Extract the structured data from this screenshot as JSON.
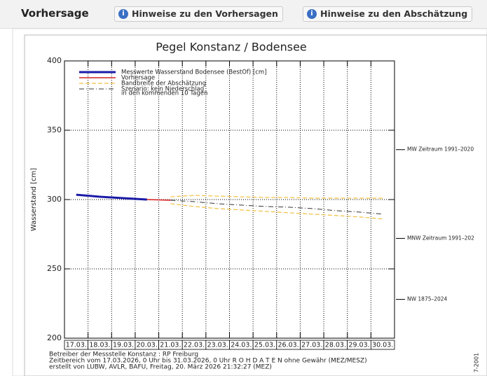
{
  "header": {
    "title": "Vorhersage",
    "buttons": [
      "Hinweise zu den Vorhersagen",
      "Hinweise zu den Abschätzung"
    ]
  },
  "chart_data": {
    "type": "line",
    "title": "Pegel Konstanz / Bodensee",
    "y_label": "Wasserstand [cm]",
    "categories": [
      "17.03.",
      "18.03.",
      "19.03.",
      "20.03.",
      "21.03.",
      "22.03.",
      "23.03.",
      "24.03.",
      "25.03.",
      "26.03.",
      "27.03.",
      "28.03.",
      "29.03.",
      "30.03."
    ],
    "series": [
      {
        "name": "Messwerte Wasserstand Bodensee  (BestOf)  [cm]",
        "color": "#1a1aa8",
        "style": "solid",
        "width": 3,
        "values": [
          303.5,
          302,
          301,
          300,
          null,
          null,
          null,
          null,
          null,
          null,
          null,
          null,
          null,
          null
        ]
      },
      {
        "name": "Vorhersage",
        "color": "#d42020",
        "style": "solid",
        "width": 1.5,
        "values": [
          null,
          null,
          null,
          300,
          299.5,
          null,
          null,
          null,
          null,
          null,
          null,
          null,
          null,
          null
        ]
      },
      {
        "name": "Szenario: kein Niederschlag",
        "color": "#333333",
        "style": "dashdot",
        "width": 1,
        "values": [
          null,
          null,
          null,
          null,
          299.5,
          298.5,
          297,
          296,
          295,
          294.5,
          293.5,
          292,
          291,
          289.5
        ]
      }
    ],
    "legend_note": "in den kommenden 10 Tagen",
    "band": {
      "name": "Bandbreite der Abschätzung",
      "color": "#f0c040",
      "upper": [
        null,
        null,
        null,
        null,
        302,
        303,
        302.5,
        302,
        301.5,
        301.5,
        301,
        301,
        301,
        301
      ],
      "lower": [
        null,
        null,
        null,
        null,
        297,
        295,
        293.5,
        292.5,
        291.5,
        290.5,
        289.5,
        288.5,
        287.5,
        286
      ]
    },
    "ylim": [
      200,
      400
    ],
    "yticks": [
      200,
      250,
      300,
      350,
      400
    ],
    "grid": true,
    "annotations": [
      {
        "value": 336,
        "label": "MW Zeitraum 1991–2020"
      },
      {
        "value": 272,
        "label": "MNW Zeitraum 1991–202"
      },
      {
        "value": 228,
        "label": "NW 1875–2024"
      }
    ],
    "footer": [
      "Betreiber der Messstelle Konstanz : RP Freiburg",
      "Zeitbereich vom 17.03.2026, 0 Uhr bis 31.03.2026, 0 Uhr    R O H D A T E N ohne Gewähr (MEZ/MESZ)",
      "erstellt von LUBW, AVLR, BAFU, Freitag, 20. März 2026 21:32:27 (MEZ)"
    ],
    "side_note": "7-2001"
  }
}
